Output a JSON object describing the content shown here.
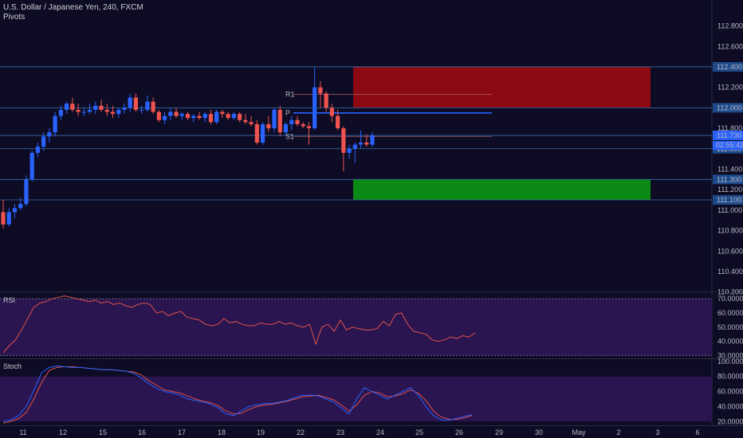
{
  "header": {
    "title": "U.S. Dollar / Japanese Yen, 240, FXCM",
    "indicator": "Pivots"
  },
  "colors": {
    "background": "#0d0c24",
    "up": "#2962ff",
    "down": "#ef5350",
    "resistance_zone": "#8b0a14",
    "support_zone": "#0a8a14",
    "level_line": "#3a6ea8",
    "pivot_line": "#2962ff",
    "rsi_line": "#e0504a",
    "stoch_k": "#2962ff",
    "stoch_d": "#e0504a",
    "pane_band": "#2a1550"
  },
  "chart_data": [
    {
      "type": "candlestick",
      "symbol": "USDJPY",
      "timeframe": "240",
      "ylim": [
        110.1,
        112.9
      ],
      "y_ticks": [
        "112.800",
        "112.600",
        "112.400",
        "112.200",
        "112.000",
        "111.800",
        "111.600",
        "111.400",
        "111.200",
        "111.000",
        "110.800",
        "110.600",
        "110.400",
        "110.200"
      ],
      "x_ticks": [
        "11",
        "12",
        "15",
        "16",
        "17",
        "18",
        "19",
        "22",
        "23",
        "24",
        "25",
        "26",
        "29",
        "30",
        "May",
        "2",
        "3",
        "6"
      ],
      "candles": [
        {
          "o": 110.98,
          "h": 111.1,
          "l": 110.82,
          "c": 110.86
        },
        {
          "o": 110.86,
          "h": 111.02,
          "l": 110.84,
          "c": 110.98
        },
        {
          "o": 110.98,
          "h": 111.06,
          "l": 110.92,
          "c": 111.02
        },
        {
          "o": 111.02,
          "h": 111.12,
          "l": 111.0,
          "c": 111.06
        },
        {
          "o": 111.06,
          "h": 111.34,
          "l": 111.04,
          "c": 111.3
        },
        {
          "o": 111.3,
          "h": 111.58,
          "l": 111.28,
          "c": 111.56
        },
        {
          "o": 111.56,
          "h": 111.66,
          "l": 111.52,
          "c": 111.62
        },
        {
          "o": 111.62,
          "h": 111.76,
          "l": 111.58,
          "c": 111.72
        },
        {
          "o": 111.72,
          "h": 111.8,
          "l": 111.66,
          "c": 111.76
        },
        {
          "o": 111.76,
          "h": 111.96,
          "l": 111.72,
          "c": 111.92
        },
        {
          "o": 111.92,
          "h": 112.02,
          "l": 111.88,
          "c": 111.98
        },
        {
          "o": 111.98,
          "h": 112.06,
          "l": 111.94,
          "c": 112.04
        },
        {
          "o": 112.04,
          "h": 112.1,
          "l": 111.96,
          "c": 111.98
        },
        {
          "o": 111.98,
          "h": 112.04,
          "l": 111.92,
          "c": 111.96
        },
        {
          "o": 111.96,
          "h": 112.0,
          "l": 111.92,
          "c": 111.96
        },
        {
          "o": 111.96,
          "h": 112.04,
          "l": 111.94,
          "c": 111.98
        },
        {
          "o": 111.98,
          "h": 112.06,
          "l": 111.94,
          "c": 112.02
        },
        {
          "o": 112.02,
          "h": 112.08,
          "l": 111.96,
          "c": 111.98
        },
        {
          "o": 111.98,
          "h": 112.04,
          "l": 111.92,
          "c": 111.96
        },
        {
          "o": 111.96,
          "h": 112.02,
          "l": 111.9,
          "c": 111.94
        },
        {
          "o": 111.94,
          "h": 112.0,
          "l": 111.9,
          "c": 111.98
        },
        {
          "o": 111.98,
          "h": 112.04,
          "l": 111.94,
          "c": 112.0
        },
        {
          "o": 112.0,
          "h": 112.14,
          "l": 111.96,
          "c": 112.1
        },
        {
          "o": 112.1,
          "h": 112.14,
          "l": 111.96,
          "c": 111.98
        },
        {
          "o": 111.98,
          "h": 112.02,
          "l": 111.94,
          "c": 111.98
        },
        {
          "o": 111.98,
          "h": 112.12,
          "l": 111.96,
          "c": 112.06
        },
        {
          "o": 112.06,
          "h": 112.1,
          "l": 111.94,
          "c": 111.96
        },
        {
          "o": 111.96,
          "h": 111.98,
          "l": 111.86,
          "c": 111.88
        },
        {
          "o": 111.88,
          "h": 111.96,
          "l": 111.84,
          "c": 111.92
        },
        {
          "o": 111.92,
          "h": 112.0,
          "l": 111.88,
          "c": 111.96
        },
        {
          "o": 111.96,
          "h": 112.0,
          "l": 111.9,
          "c": 111.92
        },
        {
          "o": 111.92,
          "h": 111.96,
          "l": 111.88,
          "c": 111.94
        },
        {
          "o": 111.94,
          "h": 111.96,
          "l": 111.88,
          "c": 111.9
        },
        {
          "o": 111.9,
          "h": 111.94,
          "l": 111.86,
          "c": 111.92
        },
        {
          "o": 111.92,
          "h": 111.96,
          "l": 111.88,
          "c": 111.9
        },
        {
          "o": 111.9,
          "h": 111.96,
          "l": 111.86,
          "c": 111.94
        },
        {
          "o": 111.94,
          "h": 111.98,
          "l": 111.84,
          "c": 111.86
        },
        {
          "o": 111.86,
          "h": 111.98,
          "l": 111.84,
          "c": 111.96
        },
        {
          "o": 111.96,
          "h": 111.98,
          "l": 111.9,
          "c": 111.94
        },
        {
          "o": 111.94,
          "h": 111.96,
          "l": 111.88,
          "c": 111.9
        },
        {
          "o": 111.9,
          "h": 111.96,
          "l": 111.88,
          "c": 111.94
        },
        {
          "o": 111.94,
          "h": 111.96,
          "l": 111.86,
          "c": 111.88
        },
        {
          "o": 111.88,
          "h": 111.94,
          "l": 111.84,
          "c": 111.86
        },
        {
          "o": 111.86,
          "h": 111.92,
          "l": 111.82,
          "c": 111.84
        },
        {
          "o": 111.84,
          "h": 111.88,
          "l": 111.64,
          "c": 111.66
        },
        {
          "o": 111.66,
          "h": 111.86,
          "l": 111.64,
          "c": 111.84
        },
        {
          "o": 111.84,
          "h": 111.92,
          "l": 111.76,
          "c": 111.8
        },
        {
          "o": 111.8,
          "h": 112.0,
          "l": 111.76,
          "c": 111.98
        },
        {
          "o": 111.98,
          "h": 112.02,
          "l": 111.72,
          "c": 111.76
        },
        {
          "o": 111.76,
          "h": 111.86,
          "l": 111.74,
          "c": 111.84
        },
        {
          "o": 111.84,
          "h": 111.92,
          "l": 111.78,
          "c": 111.88
        },
        {
          "o": 111.88,
          "h": 111.92,
          "l": 111.82,
          "c": 111.84
        },
        {
          "o": 111.84,
          "h": 111.86,
          "l": 111.8,
          "c": 111.82
        },
        {
          "o": 111.82,
          "h": 111.86,
          "l": 111.64,
          "c": 111.8
        },
        {
          "o": 111.8,
          "h": 112.4,
          "l": 111.78,
          "c": 112.2
        },
        {
          "o": 112.2,
          "h": 112.26,
          "l": 112.0,
          "c": 112.14
        },
        {
          "o": 112.14,
          "h": 112.16,
          "l": 111.96,
          "c": 112.0
        },
        {
          "o": 112.0,
          "h": 112.04,
          "l": 111.86,
          "c": 111.92
        },
        {
          "o": 111.92,
          "h": 111.98,
          "l": 111.78,
          "c": 111.8
        },
        {
          "o": 111.8,
          "h": 111.82,
          "l": 111.38,
          "c": 111.56
        },
        {
          "o": 111.56,
          "h": 111.64,
          "l": 111.5,
          "c": 111.6
        },
        {
          "o": 111.6,
          "h": 111.66,
          "l": 111.46,
          "c": 111.64
        },
        {
          "o": 111.64,
          "h": 111.78,
          "l": 111.6,
          "c": 111.66
        },
        {
          "o": 111.66,
          "h": 111.74,
          "l": 111.62,
          "c": 111.64
        },
        {
          "o": 111.64,
          "h": 111.76,
          "l": 111.62,
          "c": 111.73
        }
      ],
      "levels": [
        {
          "label": "R1",
          "value": 112.13
        },
        {
          "label": "P",
          "value": 111.95
        },
        {
          "label": "S1",
          "value": 111.72
        }
      ],
      "level_lines": [
        112.4,
        112.0,
        111.73,
        111.6,
        111.3,
        111.1
      ],
      "zones": [
        {
          "type": "resistance",
          "from": 112.0,
          "to": 112.4
        },
        {
          "type": "support",
          "from": 111.1,
          "to": 111.3
        }
      ],
      "price_labels": [
        {
          "value": 112.4,
          "text": "112.400"
        },
        {
          "value": 112.0,
          "text": "112.000"
        },
        {
          "value": 111.73,
          "text": "111.730"
        },
        {
          "value": 111.6,
          "text": "111.600"
        },
        {
          "value": 111.3,
          "text": "111.300"
        },
        {
          "value": 111.1,
          "text": "111.100"
        }
      ],
      "countdown": "02:55:43"
    },
    {
      "type": "line",
      "name": "RSI",
      "ylim": [
        28,
        74
      ],
      "y_ticks": [
        "70.0000",
        "60.0000",
        "50.0000",
        "40.0000",
        "30.0000"
      ],
      "band": [
        30,
        70
      ],
      "values": [
        32,
        37,
        41,
        48,
        56,
        64,
        67,
        68,
        70,
        71,
        72,
        71,
        70,
        69,
        68,
        69,
        67,
        68,
        66,
        67,
        65,
        64,
        66,
        67,
        66,
        60,
        61,
        58,
        60,
        61,
        57,
        56,
        55,
        52,
        51,
        52,
        56,
        53,
        54,
        52,
        51,
        51,
        53,
        52,
        52,
        54,
        52,
        53,
        51,
        50,
        52,
        38,
        50,
        52,
        47,
        55,
        48,
        50,
        49,
        48,
        48,
        49,
        54,
        51,
        59,
        60,
        52,
        47,
        46,
        45,
        41,
        40,
        41,
        43,
        42,
        44,
        43,
        46
      ],
      "tail_values": [
        64,
        55,
        46,
        43,
        38,
        37,
        38,
        41,
        43,
        44,
        46,
        46
      ]
    },
    {
      "type": "line",
      "name": "Stoch",
      "ylim": [
        15,
        102
      ],
      "y_ticks": [
        "100.0000",
        "80.0000",
        "60.0000",
        "40.0000",
        "20.0000"
      ],
      "band": [
        20,
        80
      ],
      "k": [
        20,
        22,
        28,
        40,
        62,
        85,
        92,
        94,
        93,
        92,
        92,
        91,
        90,
        89,
        89,
        88,
        87,
        84,
        78,
        70,
        64,
        60,
        58,
        55,
        50,
        48,
        46,
        43,
        38,
        30,
        28,
        34,
        40,
        42,
        44,
        44,
        46,
        48,
        52,
        55,
        55,
        54,
        50,
        46,
        38,
        30,
        50,
        65,
        60,
        55,
        50,
        55,
        60,
        65,
        55,
        40,
        28,
        22,
        22,
        24,
        27,
        29
      ],
      "d": [
        18,
        20,
        24,
        32,
        50,
        72,
        88,
        92,
        93,
        93,
        92,
        91,
        90,
        89,
        89,
        88,
        87,
        86,
        82,
        74,
        68,
        62,
        60,
        58,
        54,
        50,
        47,
        45,
        41,
        34,
        30,
        31,
        36,
        40,
        42,
        43,
        45,
        47,
        50,
        53,
        54,
        55,
        52,
        49,
        42,
        34,
        42,
        55,
        60,
        58,
        53,
        54,
        57,
        62,
        58,
        48,
        34,
        26,
        23,
        23,
        25,
        28
      ]
    }
  ]
}
